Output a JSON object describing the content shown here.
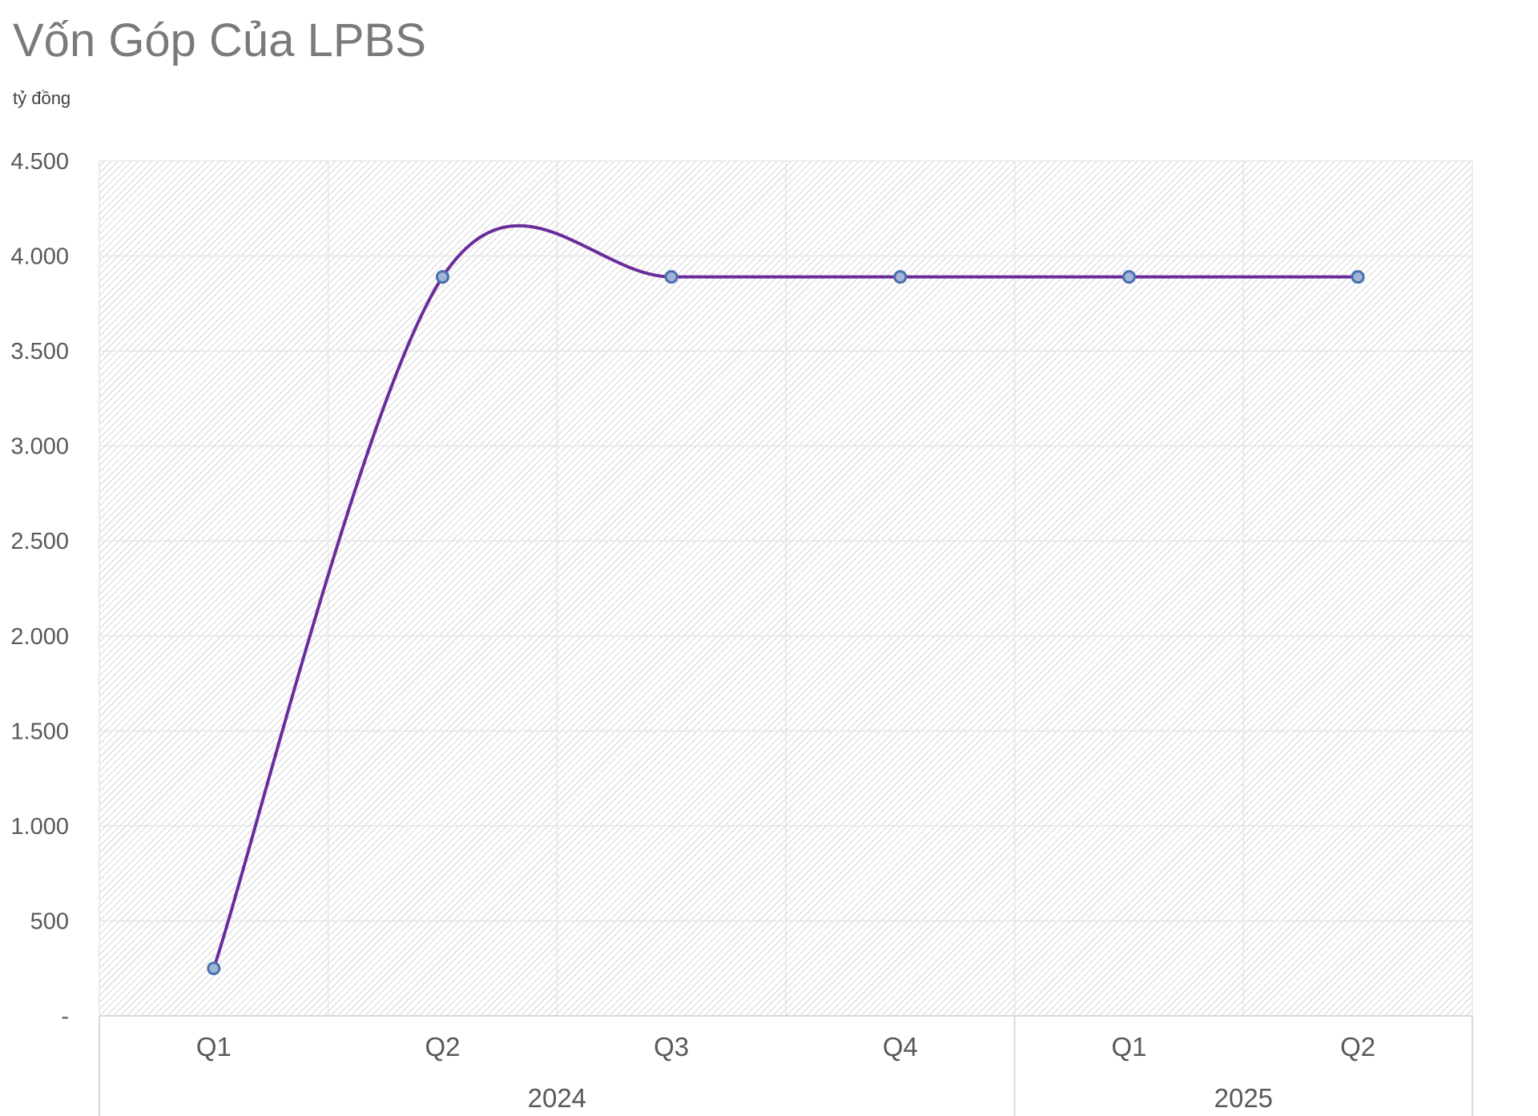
{
  "header": {
    "title": "Vốn Góp Của LPBS",
    "unit": "tỷ đồng"
  },
  "chart_data": {
    "type": "line",
    "title": "Vốn Góp Của LPBS",
    "ylabel": "tỷ đồng",
    "xlabel": "",
    "ylim": [
      0,
      4500
    ],
    "y_ticks": [
      0,
      500,
      1000,
      1500,
      2000,
      2500,
      3000,
      3500,
      4000,
      4500
    ],
    "y_tick_labels": [
      "-",
      "500",
      "1.000",
      "1.500",
      "2.000",
      "2.500",
      "3.000",
      "3.500",
      "4.000",
      "4.500"
    ],
    "categories": [
      "Q1",
      "Q2",
      "Q3",
      "Q4",
      "Q1",
      "Q2"
    ],
    "groups": [
      {
        "label": "2024",
        "span": 4
      },
      {
        "label": "2025",
        "span": 2
      }
    ],
    "series": [
      {
        "values": [
          250,
          3890,
          3890,
          3890,
          3890,
          3890
        ]
      }
    ],
    "smoothed": true,
    "grid": true,
    "legend": "none",
    "colors": {
      "line": "#6a2c9a",
      "marker_fill": "#9fb6d6",
      "marker_stroke": "#4a6fb0",
      "grid": "#e6e6e6",
      "hatch": "#d4d4d4"
    }
  }
}
